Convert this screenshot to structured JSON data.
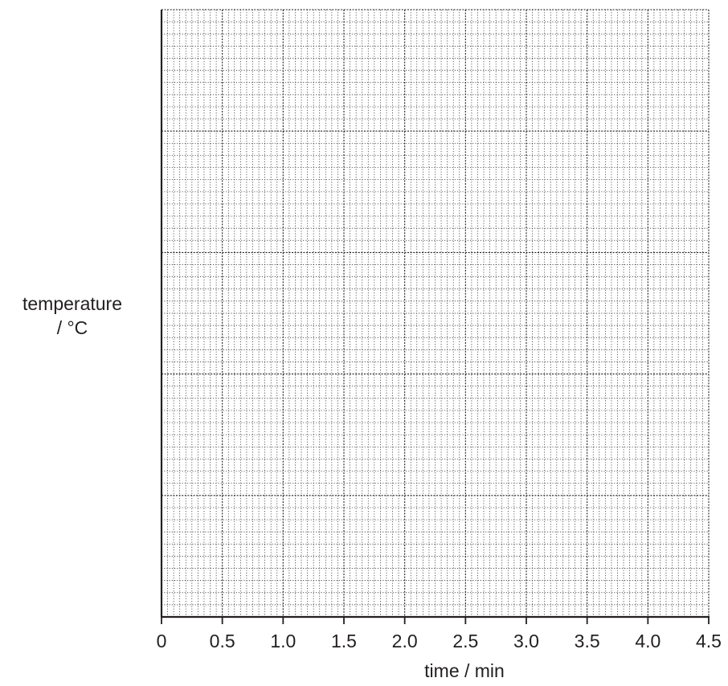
{
  "chart_data": {
    "type": "line",
    "title": "",
    "xlabel": "time / min",
    "ylabel_line1": "temperature",
    "ylabel_line2": "/ °C",
    "xlim": [
      0,
      4.5
    ],
    "x_ticks": [
      "0",
      "0.5",
      "1.0",
      "1.5",
      "2.0",
      "2.5",
      "3.0",
      "3.5",
      "4.0",
      "4.5"
    ],
    "y_ticks": [],
    "series": [],
    "grid": {
      "on": true,
      "major_columns": 9,
      "major_rows": 5,
      "minor_per_major": 10,
      "style": "dotted",
      "color": "#231f20"
    }
  }
}
